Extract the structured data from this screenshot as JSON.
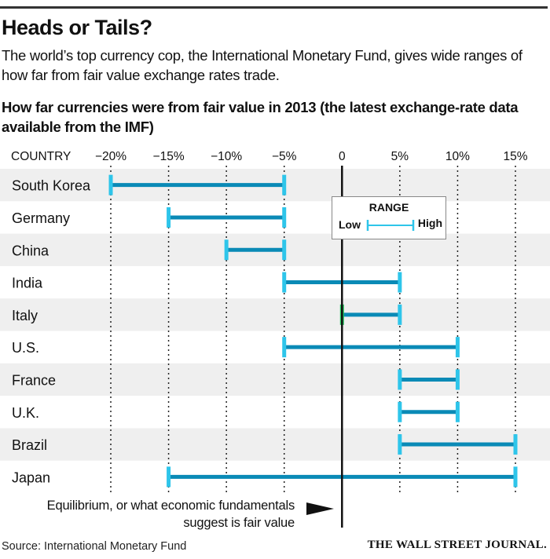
{
  "header": {
    "title": "Heads or Tails?",
    "subtitle": "The world’s top currency cop, the International Monetary Fund, gives wide ranges of how far from fair value exchange rates trade.",
    "chart_title": "How far currencies were from fair value in 2013 (the latest exchange-rate data available from the IMF)"
  },
  "legend": {
    "title": "RANGE",
    "low_label": "Low",
    "high_label": "High"
  },
  "annotation": "Equilibrium, or what economic fundamentals suggest is fair value",
  "footer": {
    "source": "Source: International Monetary Fund",
    "brand": "THE WALL STREET JOURNAL."
  },
  "colors": {
    "bar": "#0a8ab6",
    "cap": "#2ec5ea",
    "zero_cap": "#22c55e",
    "band": "#efefef"
  },
  "chart_data": {
    "type": "range",
    "title": "How far currencies were from fair value in 2013 (the latest exchange-rate data available from the IMF)",
    "category_header": "COUNTRY",
    "xlim": [
      -20,
      15
    ],
    "xticks": [
      -20,
      -15,
      -10,
      -5,
      0,
      5,
      10,
      15
    ],
    "xtick_labels": [
      "−20%",
      "−15%",
      "−10%",
      "−5%",
      "0",
      "5%",
      "10%",
      "15%"
    ],
    "grid": "dotted vertical",
    "legend_position": "top-right",
    "units": "percent from fair value",
    "categories": [
      "South Korea",
      "Germany",
      "China",
      "India",
      "Italy",
      "U.S.",
      "France",
      "U.K.",
      "Brazil",
      "Japan"
    ],
    "series": [
      {
        "name": "Low",
        "values": [
          -20,
          -15,
          -10,
          -5,
          0,
          -5,
          5,
          5,
          5,
          -15
        ]
      },
      {
        "name": "High",
        "values": [
          -5,
          -5,
          -5,
          5,
          5,
          10,
          10,
          10,
          15,
          15
        ]
      }
    ]
  }
}
